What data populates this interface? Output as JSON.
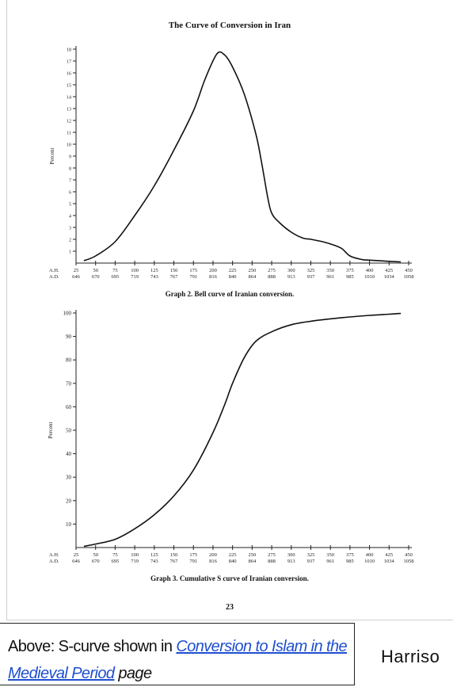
{
  "document": {
    "title": "The Curve of Conversion in Iran",
    "page_number": "23"
  },
  "note": {
    "prefix": "Above: S-curve shown in ",
    "link_text": "Conversion to Islam in the Medieval Period",
    "suffix": " page",
    "side_text": "Harriso"
  },
  "chart_data": [
    {
      "type": "line",
      "caption": "Graph 2. Bell curve of Iranian conversion.",
      "ylabel": "Percent",
      "ylim": [
        0,
        18
      ],
      "yticks": [
        1,
        2,
        3,
        4,
        5,
        6,
        7,
        8,
        9,
        10,
        11,
        12,
        13,
        14,
        15,
        16,
        17,
        18
      ],
      "x_axis_labels": {
        "primary": "A.H.",
        "secondary": "A.D."
      },
      "x_ticks_ah": [
        "25",
        "50",
        "75",
        "100",
        "125",
        "150",
        "175",
        "200",
        "225",
        "250",
        "275",
        "300",
        "325",
        "350",
        "375",
        "400",
        "425",
        "450"
      ],
      "x_ticks_ad": [
        "646",
        "670",
        "695",
        "719",
        "743",
        "767",
        "791",
        "816",
        "840",
        "864",
        "888",
        "913",
        "937",
        "961",
        "985",
        "1010",
        "1034",
        "1058"
      ],
      "x": [
        35,
        50,
        75,
        100,
        125,
        150,
        175,
        190,
        205,
        215,
        225,
        240,
        255,
        262,
        270,
        275,
        285,
        300,
        315,
        325,
        340,
        355,
        365,
        375,
        390,
        400,
        425,
        440
      ],
      "y": [
        0.2,
        0.6,
        1.8,
        4,
        6.5,
        9.5,
        12.8,
        15.5,
        17.6,
        17.5,
        16.5,
        14.2,
        10.8,
        8.5,
        5.5,
        4.2,
        3.4,
        2.6,
        2.1,
        2,
        1.8,
        1.5,
        1.2,
        0.6,
        0.3,
        0.25,
        0.15,
        0.1
      ]
    },
    {
      "type": "line",
      "caption": "Graph 3. Cumulative S curve of Iranian conversion.",
      "ylabel": "Percent",
      "ylim": [
        0,
        100
      ],
      "yticks": [
        10,
        20,
        30,
        40,
        50,
        60,
        70,
        80,
        90,
        100
      ],
      "x_axis_labels": {
        "primary": "A.H.",
        "secondary": "A.D."
      },
      "x_ticks_ah": [
        "25",
        "50",
        "75",
        "100",
        "125",
        "150",
        "175",
        "200",
        "225",
        "250",
        "275",
        "300",
        "325",
        "350",
        "375",
        "400",
        "425",
        "450"
      ],
      "x_ticks_ad": [
        "646",
        "670",
        "695",
        "719",
        "743",
        "767",
        "791",
        "816",
        "840",
        "864",
        "888",
        "913",
        "937",
        "961",
        "985",
        "1010",
        "1034",
        "1058"
      ],
      "x": [
        35,
        50,
        75,
        100,
        125,
        150,
        175,
        200,
        215,
        225,
        240,
        255,
        275,
        300,
        325,
        350,
        375,
        400,
        425,
        440
      ],
      "y": [
        0.5,
        1.5,
        3.5,
        8,
        14,
        22,
        33,
        49,
        61,
        70,
        81,
        88,
        92,
        95,
        96.5,
        97.5,
        98.3,
        99,
        99.5,
        99.8
      ]
    }
  ]
}
